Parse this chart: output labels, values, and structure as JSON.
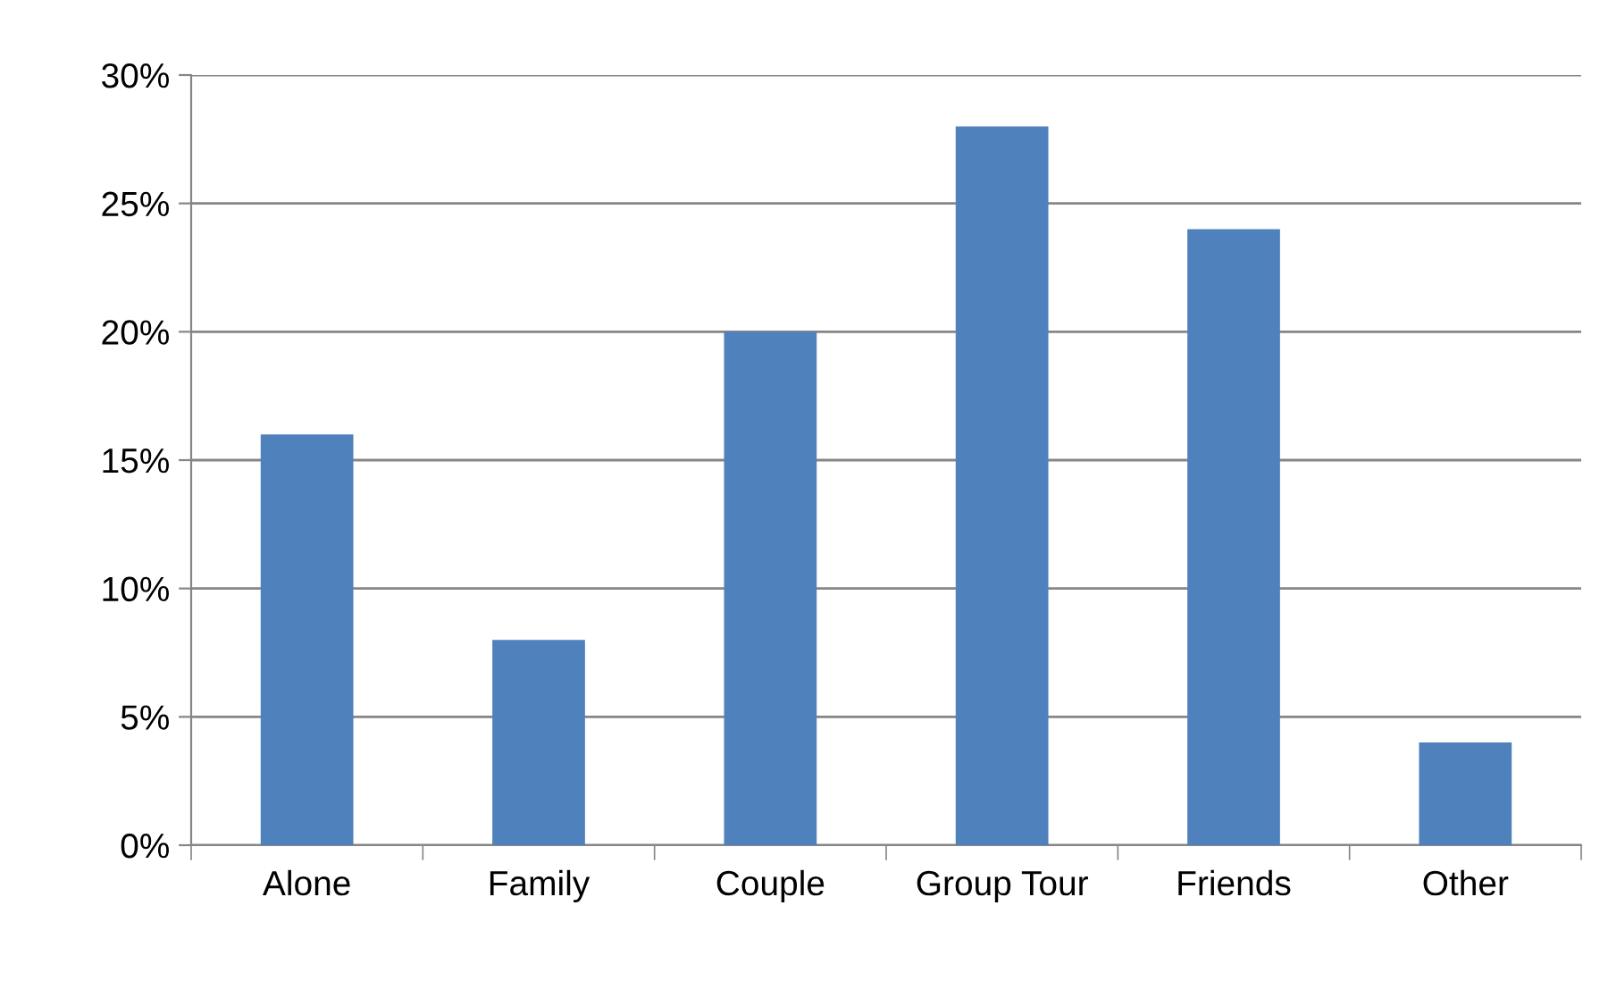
{
  "chart_data": {
    "type": "bar",
    "categories": [
      "Alone",
      "Family",
      "Couple",
      "Group Tour",
      "Friends",
      "Other"
    ],
    "values": [
      16,
      8,
      20,
      28,
      24,
      4
    ],
    "color": "#4f81bd",
    "ylim": [
      0,
      30
    ],
    "yticks": [
      {
        "value": 0,
        "label": "0%"
      },
      {
        "value": 5,
        "label": "5%"
      },
      {
        "value": 10,
        "label": "10%"
      },
      {
        "value": 15,
        "label": "15%"
      },
      {
        "value": 20,
        "label": "20%"
      },
      {
        "value": 25,
        "label": "25%"
      },
      {
        "value": 30,
        "label": "30%"
      }
    ],
    "grid": "y",
    "legend": false
  }
}
